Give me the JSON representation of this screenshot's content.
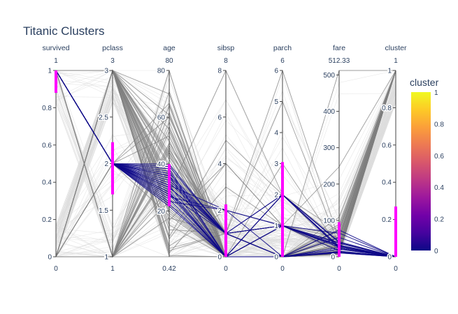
{
  "chart_data": {
    "type": "parcoords",
    "title": "Titanic Clusters",
    "dimensions": [
      {
        "label": "survived",
        "range": [
          0,
          1
        ],
        "max_label": "1",
        "min_label": "0",
        "ticks": [
          {
            "v": 0,
            "t": "0"
          },
          {
            "v": 0.2,
            "t": "0.2"
          },
          {
            "v": 0.4,
            "t": "0.4"
          },
          {
            "v": 0.6,
            "t": "0.6"
          },
          {
            "v": 0.8,
            "t": "0.8"
          },
          {
            "v": 1,
            "t": "1"
          }
        ],
        "selection": [
          0.88,
          1.0
        ]
      },
      {
        "label": "pclass",
        "range": [
          1,
          3
        ],
        "max_label": "3",
        "min_label": "1",
        "ticks": [
          {
            "v": 1,
            "t": "1"
          },
          {
            "v": 1.5,
            "t": "1.5"
          },
          {
            "v": 2,
            "t": "2"
          },
          {
            "v": 2.5,
            "t": "2.5"
          },
          {
            "v": 3,
            "t": "3"
          }
        ],
        "selection": [
          1.67,
          2.23
        ]
      },
      {
        "label": "age",
        "range": [
          0.42,
          80
        ],
        "max_label": "80",
        "min_label": "0.42",
        "ticks": [
          {
            "v": 20,
            "t": "20"
          },
          {
            "v": 40,
            "t": "40"
          },
          {
            "v": 60,
            "t": "60"
          },
          {
            "v": 80,
            "t": "80"
          }
        ],
        "selection": [
          22,
          40
        ]
      },
      {
        "label": "sibsp",
        "range": [
          0,
          8
        ],
        "max_label": "8",
        "min_label": "0",
        "ticks": [
          {
            "v": 0,
            "t": "0"
          },
          {
            "v": 2,
            "t": "2"
          },
          {
            "v": 4,
            "t": "4"
          },
          {
            "v": 6,
            "t": "6"
          },
          {
            "v": 8,
            "t": "8"
          }
        ],
        "selection": [
          0,
          2.25
        ]
      },
      {
        "label": "parch",
        "range": [
          0,
          6
        ],
        "max_label": "6",
        "min_label": "0",
        "ticks": [
          {
            "v": 0,
            "t": "0"
          },
          {
            "v": 1,
            "t": "1"
          },
          {
            "v": 2,
            "t": "2"
          },
          {
            "v": 3,
            "t": "3"
          },
          {
            "v": 4,
            "t": "4"
          },
          {
            "v": 5,
            "t": "5"
          },
          {
            "v": 6,
            "t": "6"
          }
        ],
        "selection": [
          0,
          3.05
        ]
      },
      {
        "label": "fare",
        "range": [
          0,
          512.33
        ],
        "max_label": "512.33",
        "min_label": "0",
        "ticks": [
          {
            "v": 0,
            "t": "0"
          },
          {
            "v": 100,
            "t": "100"
          },
          {
            "v": 200,
            "t": "200"
          },
          {
            "v": 300,
            "t": "300"
          },
          {
            "v": 400,
            "t": "400"
          },
          {
            "v": 500,
            "t": "500"
          }
        ],
        "selection": [
          0,
          95
        ]
      },
      {
        "label": "cluster",
        "range": [
          0,
          1
        ],
        "max_label": "1",
        "min_label": "0",
        "ticks": [
          {
            "v": 0,
            "t": "0"
          },
          {
            "v": 0.2,
            "t": "0.2"
          },
          {
            "v": 0.4,
            "t": "0.4"
          },
          {
            "v": 0.6,
            "t": "0.6"
          },
          {
            "v": 0.8,
            "t": "0.8"
          },
          {
            "v": 1,
            "t": "1"
          }
        ],
        "selection": [
          0,
          0.27
        ]
      }
    ],
    "colorbar": {
      "title": "cluster",
      "range": [
        0,
        1
      ],
      "ticks": [
        {
          "v": 0,
          "t": "0"
        },
        {
          "v": 0.2,
          "t": "0.2"
        },
        {
          "v": 0.4,
          "t": "0.4"
        },
        {
          "v": 0.6,
          "t": "0.6"
        },
        {
          "v": 0.8,
          "t": "0.8"
        },
        {
          "v": 1,
          "t": "1"
        }
      ],
      "colorscale": [
        "#0d0887",
        "#46039f",
        "#7201a8",
        "#9c179e",
        "#bd3786",
        "#d8576b",
        "#ed7953",
        "#fb9f3a",
        "#fdca26",
        "#f0f921"
      ]
    },
    "colors": {
      "highlight": "#0d0887",
      "muted": "#7f7f7f",
      "faint": "#dddddd",
      "selection": "#ff00ff",
      "axis": "#444444"
    },
    "highlighted_lines": [
      [
        1,
        2,
        35,
        1,
        0,
        53.1,
        0
      ],
      [
        1,
        2,
        28,
        0,
        0,
        13,
        0
      ],
      [
        1,
        2,
        30,
        1,
        2,
        26,
        0
      ],
      [
        1,
        2,
        38,
        0,
        1,
        30,
        0
      ],
      [
        1,
        2,
        24,
        2,
        0,
        73.5,
        0
      ],
      [
        1,
        2,
        32,
        1,
        1,
        26.25,
        0
      ],
      [
        1,
        2,
        27,
        0,
        2,
        23,
        0
      ],
      [
        1,
        2,
        34,
        1,
        0,
        21,
        0
      ],
      [
        1,
        2,
        25,
        0,
        1,
        30.5,
        0
      ],
      [
        1,
        2,
        36,
        1,
        2,
        39,
        0
      ],
      [
        1,
        2,
        29,
        0,
        0,
        10.5,
        0
      ],
      [
        1,
        2,
        40,
        1,
        1,
        26,
        0
      ],
      [
        1,
        2,
        31,
        0,
        2,
        41.6,
        0
      ],
      [
        1,
        2,
        26,
        2,
        1,
        36.75,
        0
      ],
      [
        1,
        2,
        33,
        1,
        0,
        15,
        0
      ],
      [
        1,
        2,
        23,
        0,
        1,
        65,
        0
      ],
      [
        1,
        2,
        37,
        0,
        0,
        13,
        0
      ],
      [
        1,
        2,
        30,
        1,
        1,
        32.5,
        0
      ],
      [
        1,
        2,
        28,
        0,
        2,
        29,
        0
      ],
      [
        1,
        2,
        39,
        1,
        0,
        26,
        0
      ],
      [
        1,
        2,
        22,
        0,
        0,
        10.5,
        0
      ],
      [
        1,
        2,
        35,
        0,
        1,
        15.75,
        0
      ],
      [
        1,
        2,
        31,
        2,
        1,
        39,
        0
      ],
      [
        1,
        2,
        27,
        1,
        0,
        21,
        0
      ]
    ],
    "muted_lines": [
      [
        0,
        3,
        22,
        1,
        0,
        7.25,
        1
      ],
      [
        1,
        1,
        38,
        1,
        0,
        71.28,
        1
      ],
      [
        1,
        3,
        26,
        0,
        0,
        7.92,
        1
      ],
      [
        0,
        3,
        2,
        3,
        1,
        21.07,
        1
      ],
      [
        0,
        1,
        54,
        0,
        0,
        51.86,
        1
      ],
      [
        0,
        3,
        20,
        0,
        0,
        8.05,
        1
      ],
      [
        1,
        1,
        58,
        0,
        0,
        26.55,
        1
      ],
      [
        0,
        3,
        39,
        1,
        5,
        31.27,
        1
      ],
      [
        0,
        3,
        14,
        0,
        0,
        7.85,
        1
      ],
      [
        1,
        3,
        55,
        0,
        0,
        16,
        1
      ],
      [
        0,
        3,
        31,
        1,
        0,
        18,
        1
      ],
      [
        0,
        1,
        45,
        1,
        0,
        83.48,
        1
      ],
      [
        0,
        3,
        8,
        4,
        1,
        29.12,
        1
      ],
      [
        0,
        1,
        71,
        0,
        0,
        34.65,
        1
      ],
      [
        0,
        3,
        28,
        8,
        2,
        69.55,
        1
      ],
      [
        1,
        3,
        4,
        1,
        1,
        16.7,
        1
      ],
      [
        0,
        3,
        40,
        0,
        0,
        7.9,
        1
      ],
      [
        1,
        1,
        36,
        0,
        0,
        512.33,
        1
      ],
      [
        0,
        3,
        19,
        0,
        0,
        8.05,
        1
      ],
      [
        0,
        1,
        47,
        0,
        0,
        52,
        1
      ],
      [
        0,
        3,
        70,
        0,
        0,
        7.75,
        1
      ],
      [
        0,
        3,
        16,
        4,
        1,
        39.69,
        1
      ],
      [
        1,
        1,
        24,
        0,
        1,
        247.52,
        1
      ],
      [
        0,
        3,
        33,
        0,
        0,
        8.66,
        1
      ],
      [
        0,
        1,
        46,
        1,
        0,
        61.17,
        1
      ],
      [
        1,
        3,
        1,
        0,
        2,
        15.74,
        1
      ],
      [
        0,
        3,
        44,
        0,
        1,
        16.1,
        1
      ],
      [
        0,
        1,
        62,
        0,
        0,
        26.55,
        1
      ],
      [
        0,
        3,
        9,
        5,
        2,
        46.9,
        1
      ],
      [
        1,
        1,
        17,
        1,
        0,
        108.9,
        1
      ],
      [
        0,
        3,
        32,
        0,
        0,
        56.5,
        1
      ],
      [
        0,
        3,
        29,
        1,
        0,
        7.05,
        1
      ],
      [
        0,
        1,
        28,
        0,
        0,
        47.1,
        1
      ],
      [
        0,
        3,
        24,
        0,
        0,
        7.5,
        1
      ],
      [
        1,
        3,
        45,
        0,
        0,
        8.05,
        1
      ],
      [
        0,
        2,
        66,
        0,
        0,
        10.5,
        1
      ],
      [
        0,
        3,
        35,
        0,
        0,
        8.05,
        1
      ],
      [
        1,
        1,
        49,
        1,
        0,
        89.1,
        1
      ],
      [
        0,
        3,
        21,
        0,
        0,
        9.5,
        1
      ],
      [
        0,
        1,
        80,
        0,
        0,
        30,
        1
      ],
      [
        0,
        3,
        12,
        1,
        0,
        11.24,
        1
      ],
      [
        0,
        2,
        18,
        0,
        0,
        73.5,
        1
      ],
      [
        0,
        3,
        42,
        0,
        3,
        23.25,
        1
      ],
      [
        0,
        3,
        61,
        0,
        0,
        6.24,
        1
      ],
      [
        0,
        3,
        50,
        0,
        0,
        8.05,
        1
      ],
      [
        1,
        1,
        30,
        0,
        0,
        31,
        1
      ],
      [
        0,
        3,
        27,
        0,
        0,
        7.9,
        1
      ],
      [
        0,
        2,
        52,
        0,
        0,
        13,
        1
      ],
      [
        0,
        3,
        5,
        2,
        1,
        19.26,
        1
      ],
      [
        1,
        1,
        65,
        0,
        1,
        61.98,
        1
      ],
      [
        0,
        3,
        25,
        1,
        0,
        7.78,
        1
      ],
      [
        0,
        3,
        3,
        1,
        1,
        15.9,
        1
      ],
      [
        0,
        1,
        0.42,
        0,
        1,
        8.52,
        1
      ],
      [
        0,
        3,
        43,
        1,
        6,
        46.9,
        1
      ],
      [
        0,
        1,
        56,
        0,
        0,
        30.7,
        1
      ],
      [
        0,
        2,
        60,
        1,
        1,
        39,
        1
      ],
      [
        0,
        3,
        34,
        0,
        0,
        6.5,
        1
      ],
      [
        0,
        1,
        37,
        1,
        1,
        52.55,
        1
      ],
      [
        0,
        2,
        23,
        0,
        0,
        13,
        1
      ],
      [
        1,
        1,
        48,
        1,
        0,
        76.73,
        1
      ]
    ]
  }
}
